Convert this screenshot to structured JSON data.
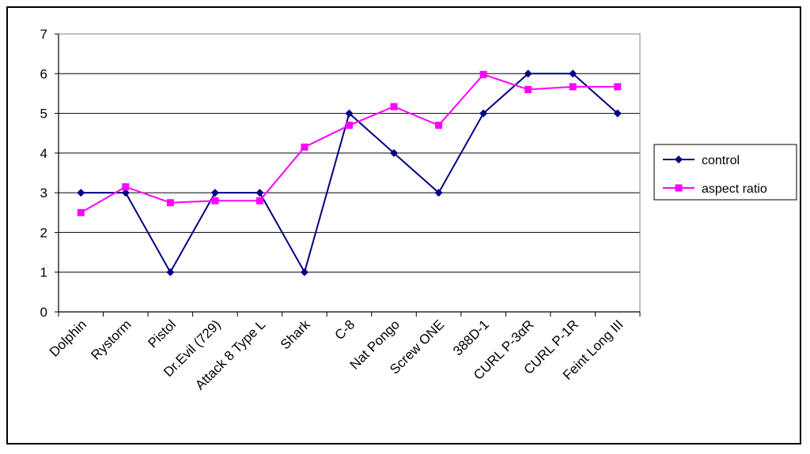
{
  "chart_data": {
    "type": "line",
    "title": "",
    "xlabel": "",
    "ylabel": "",
    "categories": [
      "Dolphin",
      "Rystorm",
      "Pistol",
      "Dr.Evil (729)",
      "Attack 8 Type L",
      "Shark",
      "C-8",
      "Nat Pongo",
      "Screw ONE",
      "388D-1",
      "CURL P-3αR",
      "CURL P-1R",
      "Feint Long III"
    ],
    "ylim": [
      0,
      7
    ],
    "yticks": [
      "0",
      "1",
      "2",
      "3",
      "4",
      "5",
      "6",
      "7"
    ],
    "grid": true,
    "legend_position": "right",
    "series": [
      {
        "name": "control",
        "color": "#000080",
        "marker": "diamond",
        "values": [
          3,
          3,
          1,
          3,
          3,
          1,
          5,
          4,
          3,
          5,
          6,
          6,
          5
        ]
      },
      {
        "name": "aspect ratio",
        "color": "#ff00ff",
        "marker": "square",
        "values": [
          2.5,
          3.15,
          2.75,
          2.8,
          2.8,
          4.15,
          4.7,
          5.17,
          4.7,
          5.98,
          5.6,
          5.67,
          5.67
        ]
      }
    ]
  }
}
